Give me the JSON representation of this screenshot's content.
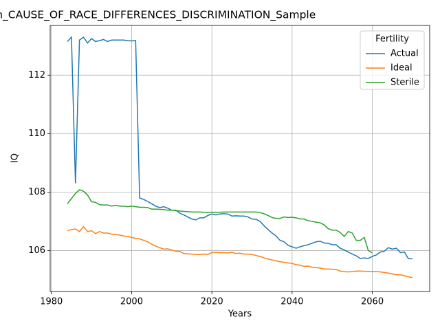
{
  "chart_data": {
    "type": "line",
    "title": "ber_Quartile_IQ_in_CAUSE_OF_RACE_DIFFERENCES_DISCRIMINATION_Sample",
    "xlabel": "Years",
    "ylabel": "IQ",
    "legend_title": "Fertility",
    "legend": "upper right",
    "grid": true,
    "x": [
      1984,
      1985,
      1986,
      1987,
      1988,
      1989,
      1990,
      1991,
      1992,
      1993,
      1994,
      1995,
      1996,
      1997,
      1998,
      1999,
      2000,
      2001,
      2002,
      2003,
      2004,
      2005,
      2006,
      2007,
      2008,
      2009,
      2010,
      2011,
      2012,
      2013,
      2014,
      2015,
      2016,
      2017,
      2018,
      2019,
      2020,
      2021,
      2022,
      2023,
      2024,
      2025,
      2026,
      2027,
      2028,
      2029,
      2030,
      2031,
      2032,
      2033,
      2034,
      2035,
      2036,
      2037,
      2038,
      2039,
      2040,
      2041,
      2042,
      2043,
      2044,
      2045,
      2046,
      2047,
      2048,
      2049,
      2050,
      2051,
      2052,
      2053,
      2054,
      2055,
      2056,
      2057,
      2058,
      2059,
      2060,
      2061,
      2062,
      2063,
      2064,
      2065,
      2066,
      2067,
      2068,
      2069,
      2070
    ],
    "series": [
      {
        "name": "Actual",
        "color": "#1f77b4",
        "values": [
          113.15,
          113.3,
          108.3,
          113.2,
          113.3,
          113.1,
          113.25,
          113.15,
          113.18,
          113.22,
          113.15,
          113.2,
          113.2,
          113.2,
          113.2,
          113.18,
          113.17,
          113.18,
          107.8,
          107.75,
          107.68,
          107.6,
          107.52,
          107.47,
          107.5,
          107.45,
          107.38,
          107.38,
          107.28,
          107.22,
          107.15,
          107.08,
          107.05,
          107.12,
          107.12,
          107.2,
          107.25,
          107.22,
          107.25,
          107.26,
          107.25,
          107.18,
          107.19,
          107.18,
          107.18,
          107.15,
          107.08,
          107.07,
          107.0,
          106.85,
          106.72,
          106.6,
          106.5,
          106.35,
          106.3,
          106.18,
          106.13,
          106.08,
          106.13,
          106.17,
          106.2,
          106.25,
          106.3,
          106.32,
          106.26,
          106.25,
          106.2,
          106.2,
          106.08,
          106.02,
          105.95,
          105.88,
          105.82,
          105.73,
          105.75,
          105.73,
          105.8,
          105.85,
          105.95,
          105.98,
          106.1,
          106.05,
          106.08,
          105.93,
          105.95,
          105.72,
          105.72
        ]
      },
      {
        "name": "Ideal",
        "color": "#ff7f0e",
        "values": [
          106.68,
          106.72,
          106.74,
          106.65,
          106.82,
          106.65,
          106.68,
          106.58,
          106.65,
          106.6,
          106.6,
          106.56,
          106.55,
          106.53,
          106.5,
          106.48,
          106.45,
          106.42,
          106.4,
          106.35,
          106.3,
          106.22,
          106.15,
          106.1,
          106.05,
          106.06,
          106.02,
          105.98,
          105.97,
          105.9,
          105.89,
          105.88,
          105.87,
          105.86,
          105.88,
          105.87,
          105.93,
          105.94,
          105.93,
          105.93,
          105.92,
          105.94,
          105.9,
          105.91,
          105.88,
          105.88,
          105.87,
          105.83,
          105.8,
          105.75,
          105.71,
          105.68,
          105.65,
          105.62,
          105.6,
          105.58,
          105.56,
          105.52,
          105.5,
          105.46,
          105.47,
          105.43,
          105.42,
          105.4,
          105.37,
          105.37,
          105.36,
          105.35,
          105.3,
          105.28,
          105.27,
          105.28,
          105.3,
          105.3,
          105.29,
          105.29,
          105.28,
          105.28,
          105.27,
          105.25,
          105.23,
          105.2,
          105.17,
          105.17,
          105.14,
          105.1,
          105.08
        ]
      },
      {
        "name": "Sterile",
        "color": "#2ca02c",
        "values": [
          107.6,
          107.78,
          107.95,
          108.08,
          108.03,
          107.9,
          107.67,
          107.65,
          107.57,
          107.56,
          107.56,
          107.52,
          107.55,
          107.52,
          107.52,
          107.5,
          107.52,
          107.5,
          107.48,
          107.48,
          107.47,
          107.42,
          107.42,
          107.41,
          107.4,
          107.38,
          107.38,
          107.37,
          107.35,
          107.34,
          107.33,
          107.32,
          107.32,
          107.32,
          107.31,
          107.31,
          107.31,
          107.31,
          107.31,
          107.32,
          107.32,
          107.32,
          107.32,
          107.32,
          107.32,
          107.32,
          107.32,
          107.32,
          107.3,
          107.26,
          107.2,
          107.13,
          107.1,
          107.1,
          107.15,
          107.13,
          107.14,
          107.12,
          107.08,
          107.08,
          107.02,
          107.0,
          106.97,
          106.95,
          106.88,
          106.75,
          106.7,
          106.7,
          106.62,
          106.48,
          106.65,
          106.6,
          106.35,
          106.35,
          106.45,
          106.0,
          105.92,
          null,
          null,
          null,
          null,
          null,
          null,
          null,
          null,
          null,
          null
        ]
      }
    ],
    "xlim": [
      1979.7,
      2074.3
    ],
    "xticks": [
      1980,
      2000,
      2020,
      2040,
      2060
    ],
    "ylim": [
      104.6,
      113.7
    ],
    "yticks": [
      106,
      108,
      110,
      112
    ]
  }
}
